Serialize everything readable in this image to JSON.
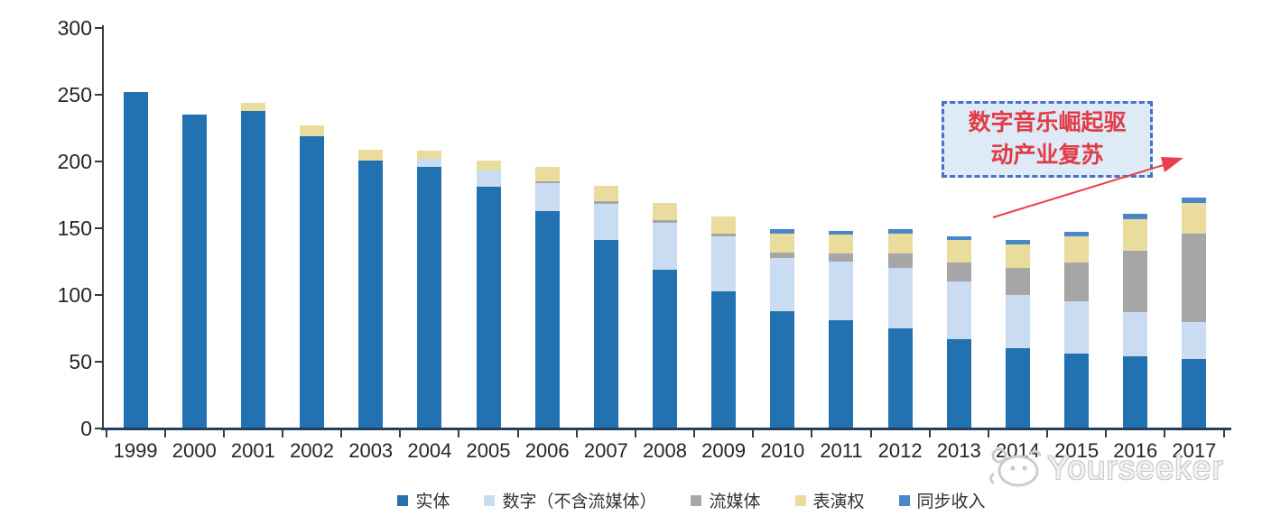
{
  "chart_data": {
    "type": "bar",
    "stacked": true,
    "categories": [
      "1999",
      "2000",
      "2001",
      "2002",
      "2003",
      "2004",
      "2005",
      "2006",
      "2007",
      "2008",
      "2009",
      "2010",
      "2011",
      "2012",
      "2013",
      "2014",
      "2015",
      "2016",
      "2017"
    ],
    "series": [
      {
        "name": "实体",
        "color": "#2272B2",
        "values": [
          252,
          235,
          238,
          219,
          201,
          196,
          181,
          163,
          141,
          119,
          103,
          88,
          81,
          75,
          67,
          60,
          56,
          54,
          52
        ]
      },
      {
        "name": "数字（不含流媒体）",
        "color": "#C9DCF2",
        "values": [
          0,
          0,
          0,
          0,
          0,
          6,
          12,
          21,
          27,
          35,
          41,
          40,
          44,
          45,
          43,
          40,
          39,
          33,
          28
        ]
      },
      {
        "name": "流媒体",
        "color": "#A6A6A6",
        "values": [
          0,
          0,
          0,
          0,
          0,
          0,
          0,
          1,
          2,
          2,
          2,
          4,
          6,
          11,
          14,
          20,
          29,
          46,
          66
        ]
      },
      {
        "name": "表演权",
        "color": "#EADC9D",
        "values": [
          0,
          0,
          6,
          8,
          8,
          6,
          8,
          11,
          12,
          13,
          13,
          14,
          14,
          15,
          17,
          18,
          20,
          24,
          23
        ]
      },
      {
        "name": "同步收入",
        "color": "#4A87C8",
        "values": [
          0,
          0,
          0,
          0,
          0,
          0,
          0,
          0,
          0,
          0,
          0,
          3,
          3,
          3,
          3,
          3,
          3,
          4,
          4
        ]
      }
    ],
    "title": "",
    "xlabel": "",
    "ylabel": "",
    "ylim": [
      0,
      300
    ],
    "yticks": [
      0,
      50,
      100,
      150,
      200,
      250,
      300
    ],
    "grid": false,
    "legend_position": "bottom"
  },
  "annotation": {
    "line1": "数字音乐崛起驱",
    "line2": "动产业复苏",
    "text_color": "#E03C45",
    "border_color": "#4472C4",
    "fill_color": "#DEEAF6",
    "arrow_color": "#E8404B"
  },
  "watermark": {
    "text": "Yourseeker",
    "color": "#C9C9C9",
    "logo": "mascot-face-logo"
  }
}
